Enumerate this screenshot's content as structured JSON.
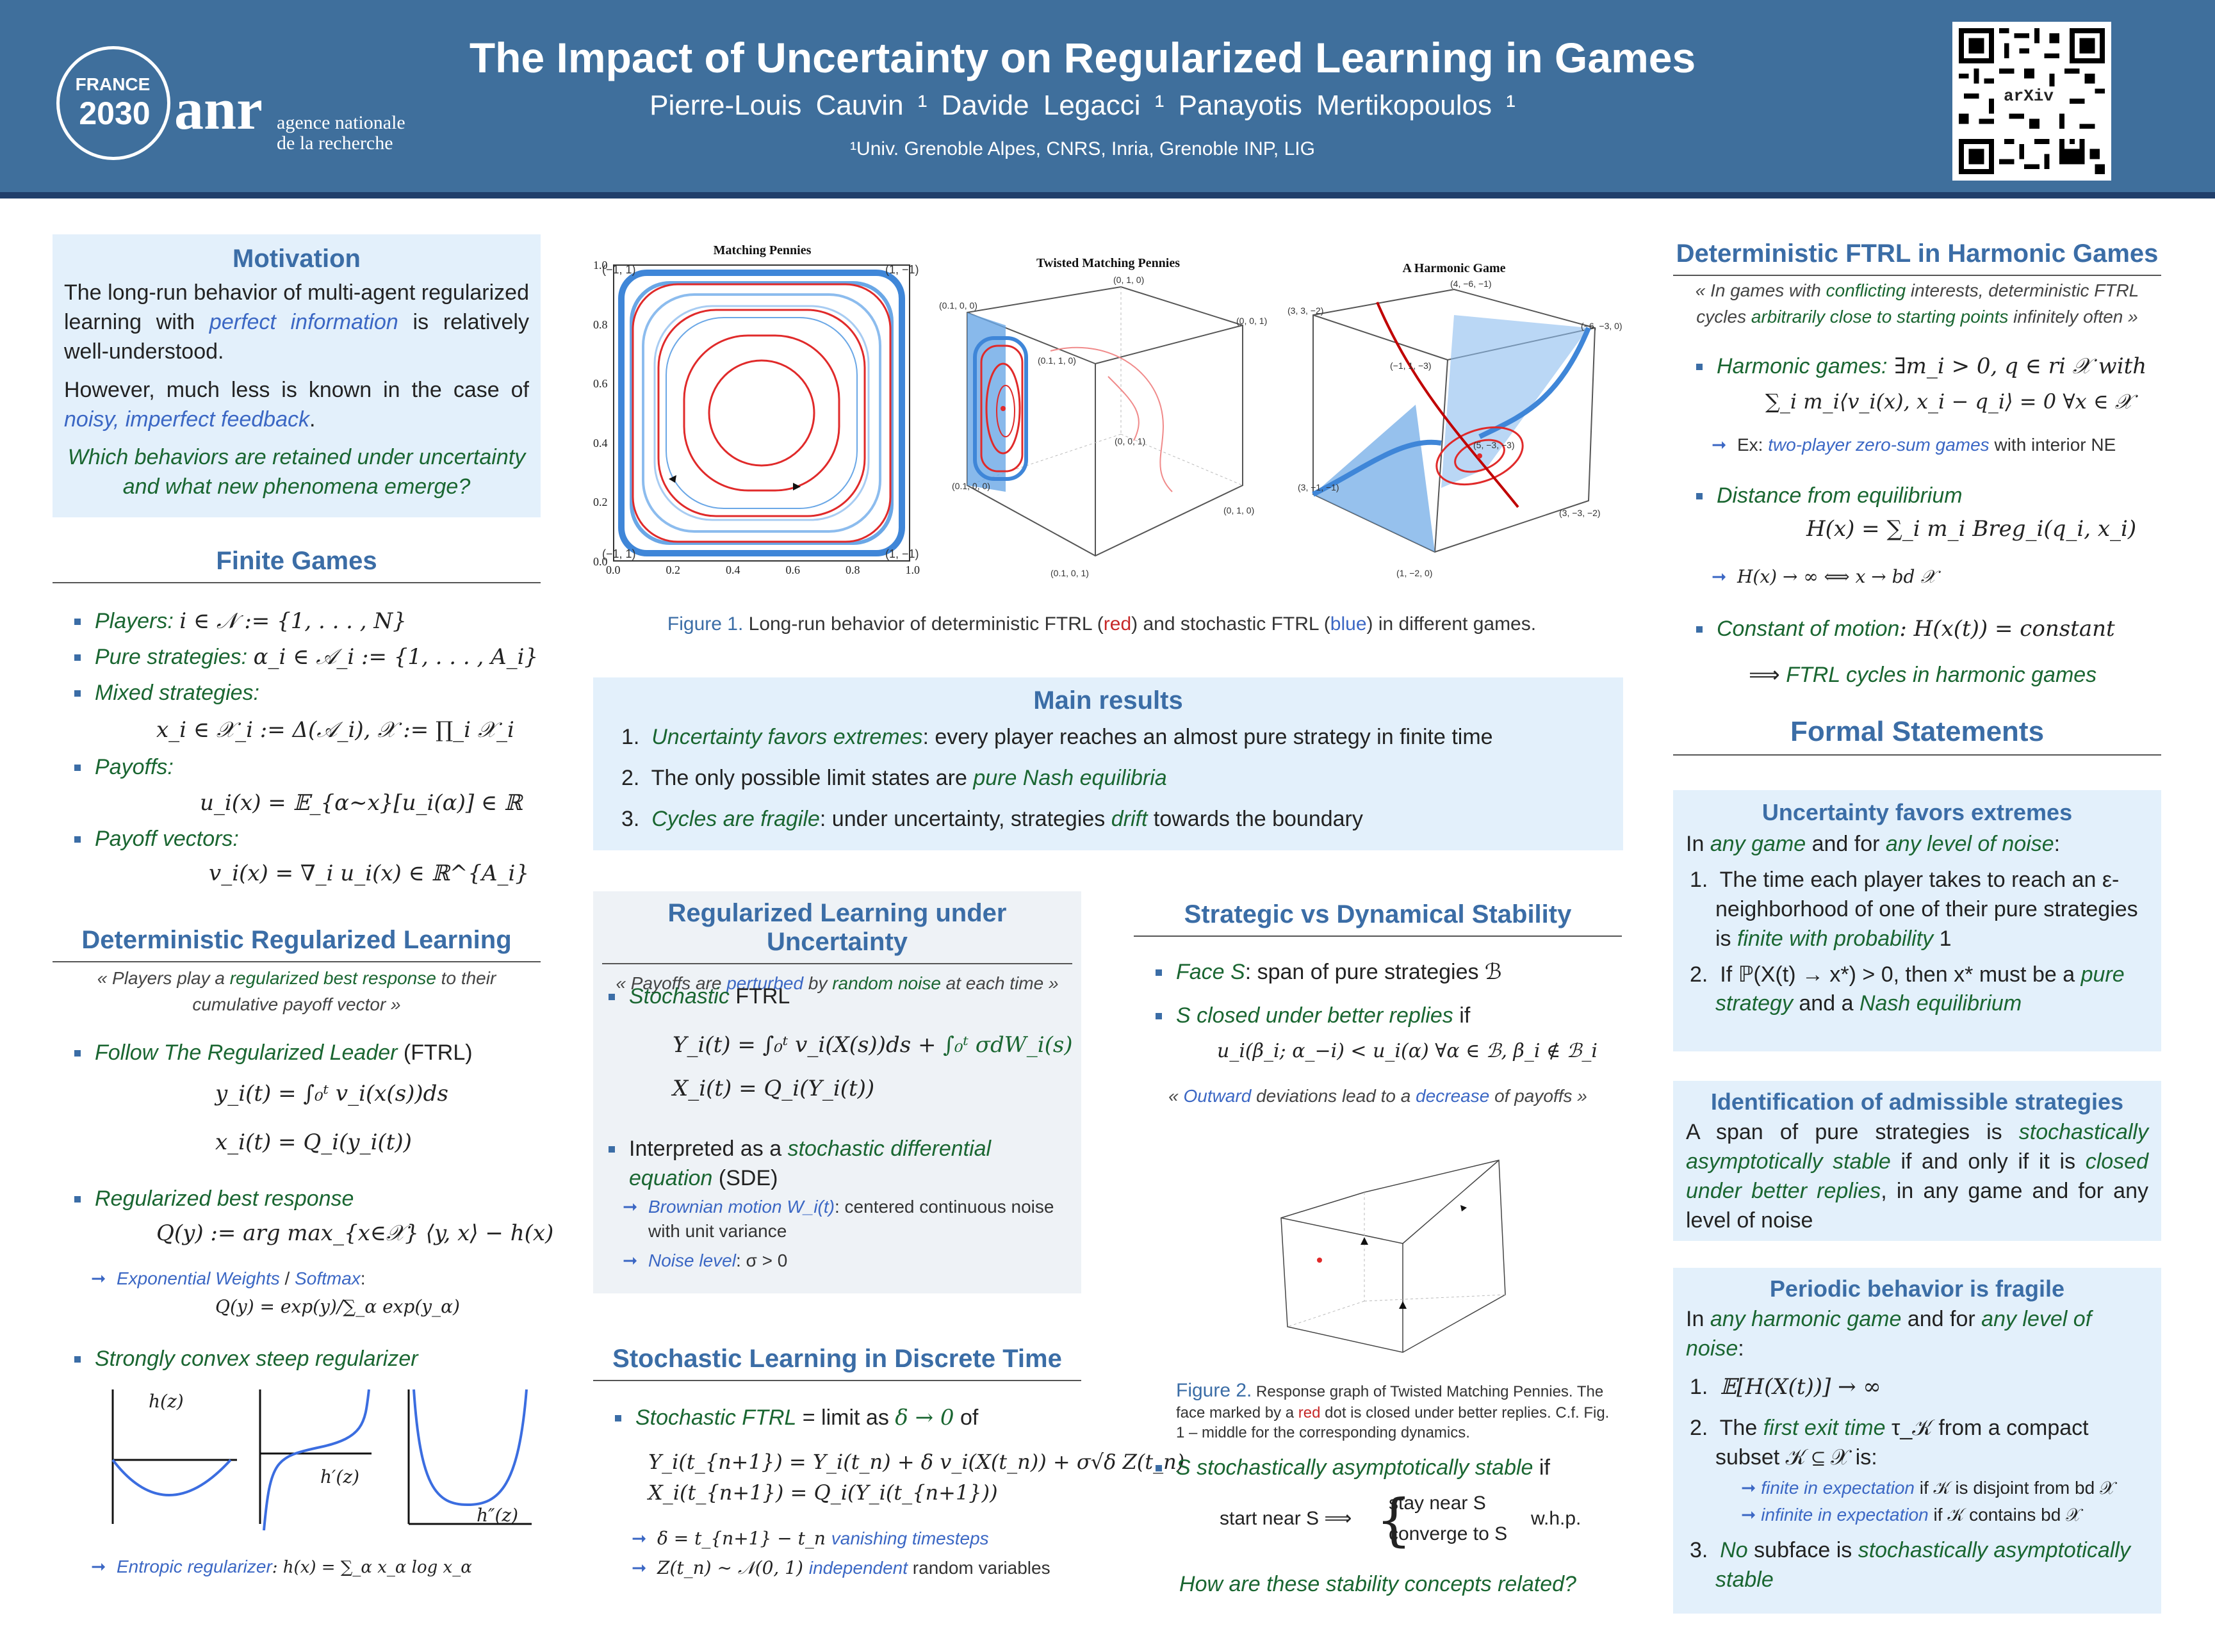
{
  "header": {
    "logo_france": "FRANCE",
    "logo_year": "2030",
    "logo_anr": "anr",
    "logo_sub": "agence nationale\nde la recherche",
    "title": "The Impact of Uncertainty on Regularized Learning in Games",
    "authors": "Pierre-Louis Cauvin ¹     Davide Legacci ¹     Panayotis Mertikopoulos ¹",
    "affiliation": "¹Univ. Grenoble Alpes, CNRS, Inria, Grenoble INP, LIG",
    "qr_label": "arXiv"
  },
  "motivation": {
    "title": "Motivation",
    "p1_a": "The long-run behavior of multi-agent regularized learning with ",
    "p1_b": "perfect information",
    "p1_c": " is relatively well-understood.",
    "p2_a": "However, much less is known in the case of ",
    "p2_b": "noisy, imperfect feedback",
    "p2_c": ".",
    "question": "Which behaviors are retained under uncertainty and what new phenomena emerge?"
  },
  "finite_games": {
    "title": "Finite Games",
    "players_label": "Players:",
    "players_eq": "i ∈ 𝒩 := {1, . . . , N}",
    "pure_label": "Pure strategies:",
    "pure_eq": "α_i ∈ 𝒜_i := {1, . . . , A_i}",
    "mixed_label": "Mixed strategies:",
    "mixed_eq": "x_i ∈ 𝒳_i := Δ(𝒜_i),     𝒳 := ∏_i 𝒳_i",
    "payoffs_label": "Payoffs:",
    "payoffs_eq": "u_i(x) = 𝔼_{α∼x}[u_i(α)] ∈ ℝ",
    "vectors_label": "Payoff vectors:",
    "vectors_eq": "v_i(x) = ∇_i u_i(x) ∈ ℝ^{A_i}"
  },
  "det_learning": {
    "title": "Deterministic Regularized Learning",
    "quote_a": "« Players play a ",
    "quote_b": "regularized best response",
    "quote_c": " to their cumulative payoff vector »",
    "ftrl_label": "Follow The Regularized Leader",
    "ftrl_abbr": " (FTRL)",
    "ftrl_eq1": "y_i(t) = ∫₀ᵗ v_i(x(s))ds",
    "ftrl_eq2": "x_i(t) = Q_i(y_i(t))",
    "rbr_label": "Regularized best response",
    "rbr_eq": "Q(y) := arg max_{x∈𝒳} ⟨y, x⟩ − h(x)",
    "exp_a": "Exponential Weights",
    "exp_b": " / ",
    "exp_c": "Softmax",
    "exp_d": ":",
    "exp_eq": "Q(y) = exp(y)/∑_α exp(y_α)",
    "reg_label": "Strongly convex steep regularizer",
    "plot1_label": "h(z)",
    "plot2_label": "h′(z)",
    "plot3_label": "h″(z)",
    "ent_a": "Entropic regularizer",
    "ent_b": ": h(x) = ∑_α x_α log x_α"
  },
  "figure1": {
    "p1_title": "Matching Pennies",
    "p2_title": "Twisted Matching Pennies",
    "p3_title": "A Harmonic Game",
    "p1_corners": [
      "(−1, 1)",
      "(1, −1)",
      "(1, −1)",
      "(−1, 1)"
    ],
    "p1_xticks": [
      "0.0",
      "0.2",
      "0.4",
      "0.6",
      "0.8",
      "1.0"
    ],
    "p1_yticks": [
      "1.0",
      "0.8",
      "0.6",
      "0.4",
      "0.2",
      "0.0"
    ],
    "p2_labels": [
      "(0, 1, 0)",
      "(0, 0, 1)",
      "(0.1, 0, 0)",
      "(0.1, 1, 0)",
      "(0, 0, 1)",
      "(0.1, 0, 0)",
      "(0, 1, 0)",
      "(0.1, 0, 1)",
      "(0, 0, 1)"
    ],
    "p3_labels": [
      "(4, −6, −1)",
      "(3, 3, −2)",
      "(−6, −3, 0)",
      "(−1, 1, −3)",
      "(5, −3, −3)",
      "(3, −1, −1)",
      "(3, −3, −2)",
      "(1, −2, 0)"
    ],
    "caption_a": "Figure 1.",
    "caption_b": " Long-run behavior of deterministic FTRL (",
    "caption_red": "red",
    "caption_c": ") and stochastic FTRL (",
    "caption_blue": "blue",
    "caption_d": ") in different games."
  },
  "main_results": {
    "title": "Main results",
    "r1_a": "Uncertainty favors extremes",
    "r1_b": ": every player reaches an almost pure strategy in finite time",
    "r2_a": "The only possible limit states are ",
    "r2_b": "pure Nash equilibria",
    "r3_a": "Cycles are fragile",
    "r3_b": ": under uncertainty, strategies ",
    "r3_c": "drift",
    "r3_d": " towards the boundary"
  },
  "reg_uncertainty": {
    "title": "Regularized Learning under Uncertainty",
    "quote_a": "« Payoffs are ",
    "quote_b": "perturbed",
    "quote_c": " by ",
    "quote_d": "random noise",
    "quote_e": " at each time »",
    "sftrl_a": "Stochastic",
    "sftrl_b": " FTRL",
    "eq1": "Y_i(t) = ∫₀ᵗ v_i(X(s))ds +",
    "eq1_green": " ∫₀ᵗ σdW_i(s)",
    "eq2": "X_i(t) = Q_i(Y_i(t))",
    "sde_a": "Interpreted as a ",
    "sde_b": "stochastic differential equation",
    "sde_c": " (SDE)",
    "bm_a": "Brownian motion W_i(t)",
    "bm_b": ": centered continuous noise with unit variance",
    "noise_a": "Noise level",
    "noise_b": ": σ > 0"
  },
  "discrete": {
    "title": "Stochastic Learning in Discrete Time",
    "lim_a": "Stochastic FTRL",
    "lim_b": " = limit as ",
    "lim_c": "δ → 0",
    "lim_d": " of",
    "eq1": "Y_i(t_{n+1}) = Y_i(t_n) + δ v_i(X(t_n)) + σ√δ Z(t_n)",
    "eq2": "X_i(t_{n+1}) = Q_i(Y_i(t_{n+1}))",
    "s1_a": "δ = t_{n+1} − t_n ",
    "s1_b": "vanishing timesteps",
    "s2_a": "Z(t_n) ∼ 𝒩(0, 1) ",
    "s2_b": "independent",
    "s2_c": " random variables"
  },
  "stability": {
    "title": "Strategic vs Dynamical Stability",
    "face_a": "Face S",
    "face_b": ": span of pure strategies ℬ",
    "closed_a": "S closed under better replies",
    "closed_b": " if",
    "closed_eq": "u_i(β_i; α_−i) < u_i(α)     ∀α ∈ ℬ, β_i ∉ ℬ_i",
    "quote_a": "« ",
    "quote_b": "Outward",
    "quote_c": " deviations lead to a ",
    "quote_d": "decrease",
    "quote_e": " of payoffs »",
    "fig2_a": "Figure 2.",
    "fig2_b": " Response graph of Twisted Matching Pennies. The face marked by a ",
    "fig2_red": "red",
    "fig2_c": " dot is closed under better replies. C.f. Fig. 1 – middle for the corresponding dynamics.",
    "sas_a": "S stochastically asymptotically stable",
    "sas_b": " if",
    "start": "start near S  ⟹",
    "stay": "stay near S",
    "converge": "converge to S",
    "whp": "w.h.p.",
    "question": "How are these stability concepts related?"
  },
  "harmonic": {
    "title": "Deterministic FTRL in Harmonic Games",
    "quote_a": "« In games with ",
    "quote_b": "conflicting",
    "quote_c": " interests, deterministic FTRL cycles ",
    "quote_d": "arbitrarily close to starting points",
    "quote_e": " infinitely often »",
    "hg_a": "Harmonic games:",
    "hg_b": " ∃m_i > 0, q ∈ ri 𝒳 with",
    "hg_eq": "∑_i m_i⟨v_i(x), x_i − q_i⟩ = 0     ∀x ∈ 𝒳",
    "ex_a": "Ex: ",
    "ex_b": "two-player zero-sum games",
    "ex_c": " with interior NE",
    "dist_label": "Distance from equilibrium",
    "dist_eq": "H(x) = ∑_i m_i Breg_i(q_i, x_i)",
    "dist_sub": "H(x) → ∞ ⟺ x → bd 𝒳",
    "const_a": "Constant of motion",
    "const_b": ": H(x(t)) = constant",
    "concl_a": "⟹ ",
    "concl_b": "FTRL cycles in harmonic games"
  },
  "formal": {
    "title": "Formal Statements",
    "b1_title": "Uncertainty favors extremes",
    "b1_intro_a": "In ",
    "b1_intro_b": "any game",
    "b1_intro_c": " and for ",
    "b1_intro_d": "any level of noise",
    "b1_intro_e": ":",
    "b1_i1_a": "The time each player takes to reach an ε-neighborhood of one of their pure strategies is ",
    "b1_i1_b": "finite with probability",
    "b1_i1_c": " 1",
    "b1_i2_a": "If ℙ(X(t) → x*) > 0, then x* must be a ",
    "b1_i2_b": "pure strategy",
    "b1_i2_c": " and a ",
    "b1_i2_d": "Nash equilibrium",
    "b2_title": "Identification of admissible strategies",
    "b2_a": "A span of pure strategies is ",
    "b2_b": "stochastically asymptotically stable",
    "b2_c": " if and only if it is ",
    "b2_d": "closed under better replies",
    "b2_e": ", in any game and for any level of noise",
    "b3_title": "Periodic behavior is fragile",
    "b3_intro_a": "In ",
    "b3_intro_b": "any harmonic game",
    "b3_intro_c": " and for ",
    "b3_intro_d": "any level of noise",
    "b3_intro_e": ":",
    "b3_i1": "𝔼[H(X(t))] → ∞",
    "b3_i2_a": "The ",
    "b3_i2_b": "first exit time",
    "b3_i2_c": " τ_𝒦 from a compact subset 𝒦 ⊆ 𝒳 is:",
    "b3_s1_a": "finite in expectation",
    "b3_s1_b": " if 𝒦 is disjoint from bd 𝒳",
    "b3_s2_a": "infinite in expectation",
    "b3_s2_b": " if 𝒦 contains bd 𝒳",
    "b3_i3_a": "No",
    "b3_i3_b": " subface is ",
    "b3_i3_c": "stochastically asymptotically stable"
  },
  "colors": {
    "header_bg": "#3f6f9c",
    "heading": "#3b6da6",
    "green": "#1a6631",
    "blue": "#3b67c4",
    "red": "#c62828",
    "box_bg": "#e3f0fb"
  }
}
